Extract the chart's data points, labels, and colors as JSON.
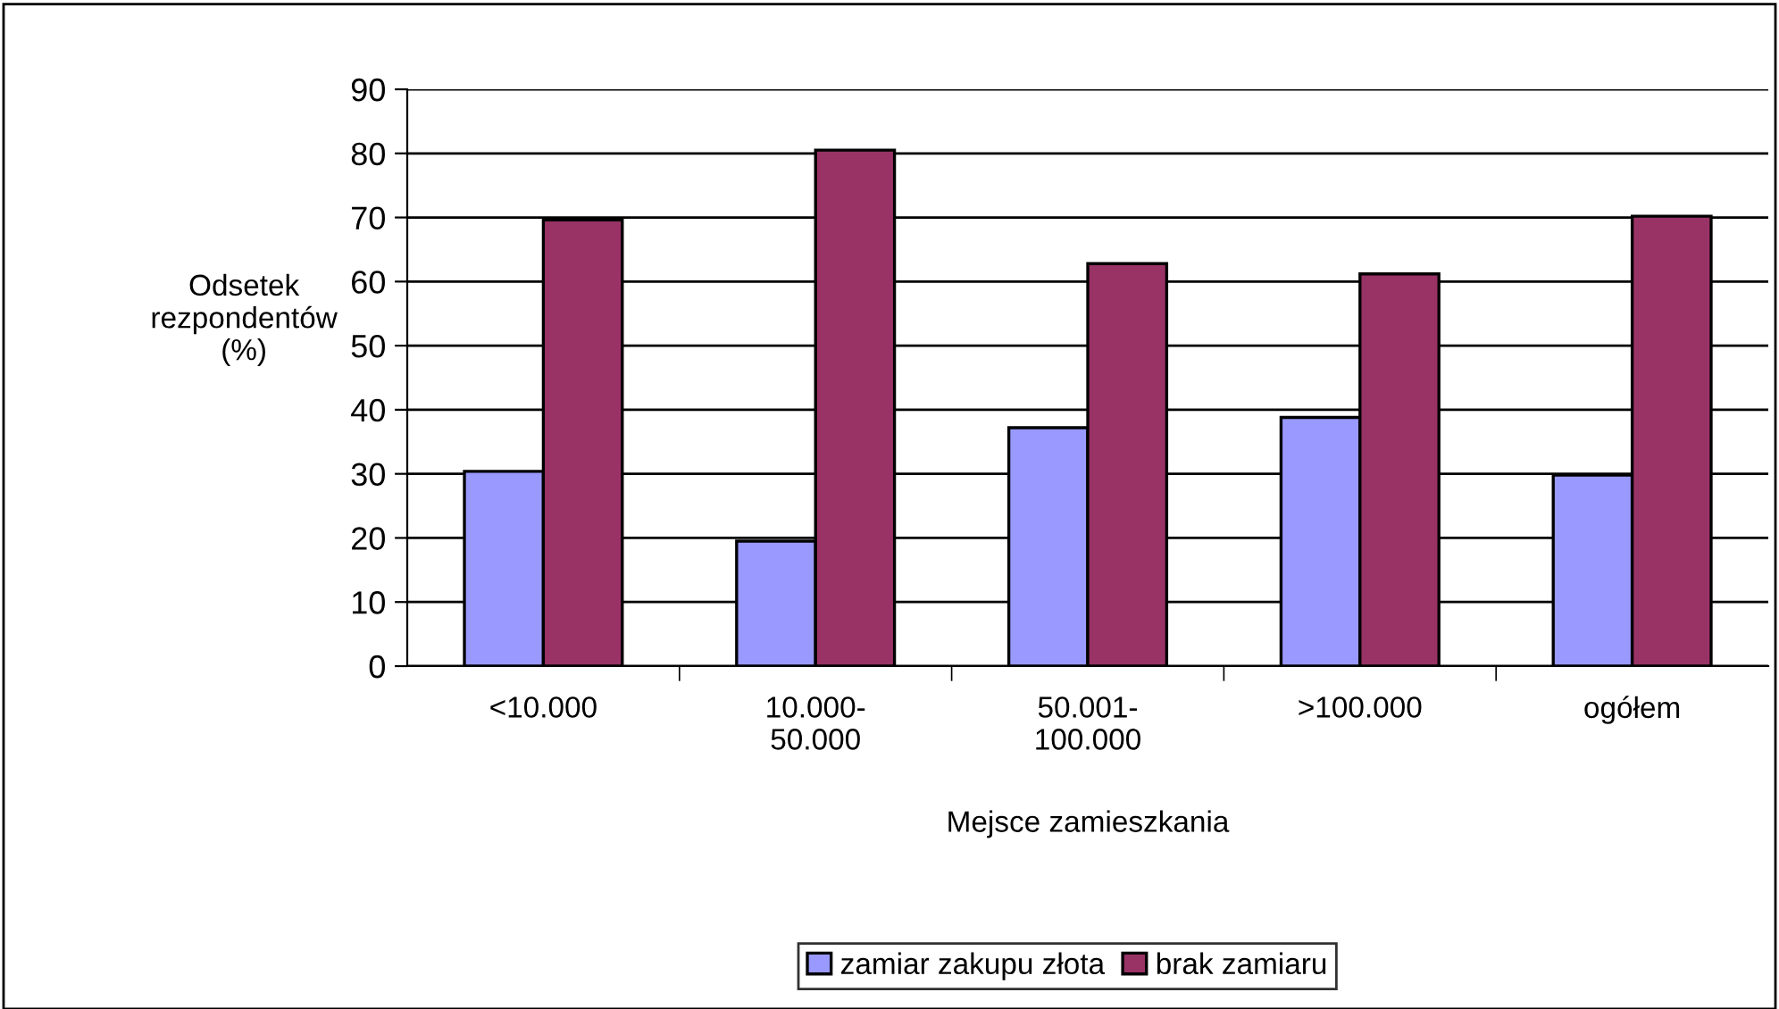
{
  "chart_data": {
    "type": "bar",
    "xlabel": "Mejsce zamieszkania",
    "ylabel": "Odsetek\nrezpondentów\n(%)",
    "categories": [
      "<10.000",
      "10.000-\n50.000",
      "50.001-\n100.000",
      ">100.000",
      "ogółem"
    ],
    "series": [
      {
        "name": "zamiar zakupu złota",
        "color": "#9999ff",
        "values": [
          30.4,
          19.5,
          37.2,
          38.8,
          29.8
        ]
      },
      {
        "name": "brak zamiaru",
        "color": "#993366",
        "values": [
          69.6,
          80.5,
          62.8,
          61.2,
          70.2
        ]
      }
    ],
    "ylim": [
      0,
      90
    ],
    "yticks": [
      0,
      10,
      20,
      30,
      40,
      50,
      60,
      70,
      80,
      90
    ],
    "grid": "y",
    "legend": "bottom"
  }
}
